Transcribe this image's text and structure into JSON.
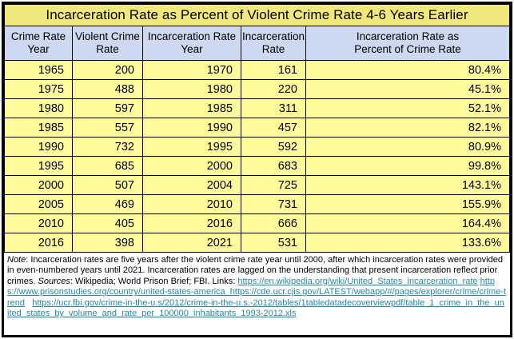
{
  "chart_data": {
    "type": "table",
    "title": "Incarceration Rate as Percent of Violent Crime Rate 4-6 Years Earlier",
    "columns": [
      "Crime Rate\nYear",
      "Violent Crime\nRate",
      "Incarceration Rate\nYear",
      "Incarceration\nRate",
      "Incarceration Rate as\nPercent of Crime Rate"
    ],
    "rows": [
      [
        "1965",
        "200",
        "1970",
        "161",
        "80.4%"
      ],
      [
        "1975",
        "488",
        "1980",
        "220",
        "45.1%"
      ],
      [
        "1980",
        "597",
        "1985",
        "311",
        "52.1%"
      ],
      [
        "1985",
        "557",
        "1990",
        "457",
        "82.1%"
      ],
      [
        "1990",
        "732",
        "1995",
        "592",
        "80.9%"
      ],
      [
        "1995",
        "685",
        "2000",
        "683",
        "99.8%"
      ],
      [
        "2000",
        "507",
        "2004",
        "725",
        "143.1%"
      ],
      [
        "2005",
        "469",
        "2010",
        "731",
        "155.9%"
      ],
      [
        "2010",
        "405",
        "2016",
        "666",
        "164.4%"
      ],
      [
        "2016",
        "398",
        "2021",
        "531",
        "133.6%"
      ]
    ]
  },
  "note": {
    "note_label": "Note",
    "note_body": ": Incarceration rates are five years after the violent crime rate year until 2000, after which incarceration rates were provided in even-numbered years until 2021. Incarceration rates are lagged on the understanding that present incarceration reflect prior crimes. ",
    "sources_label": "Sources",
    "sources_body": ": Wikipedia; World Prison Brief; FBI. Links: ",
    "links": [
      "https://en.wikipedia.org/wiki/United_States_incarceration_rate",
      "https://www.prisonstudies.org/country/united-states-america_https://cde.ucr.cjis.gov/LATEST/webapp/#/pages/explorer/crime/crime-trend",
      "https://ucr.fbi.gov/crime-in-the-u.s/2012/crime-in-the-u.s.-2012/tables/1tabledatadecoverviewpdf/table_1_crime_in_the_united_states_by_volume_and_rate_per_100000_inhabitants_1993-2012.xls"
    ]
  },
  "colors": {
    "title_bg": "#F0E87C",
    "header_bg": "#CCD9F1",
    "cell_bg": "#FFFB9D",
    "link": "#2787A8",
    "border": "#000000"
  }
}
